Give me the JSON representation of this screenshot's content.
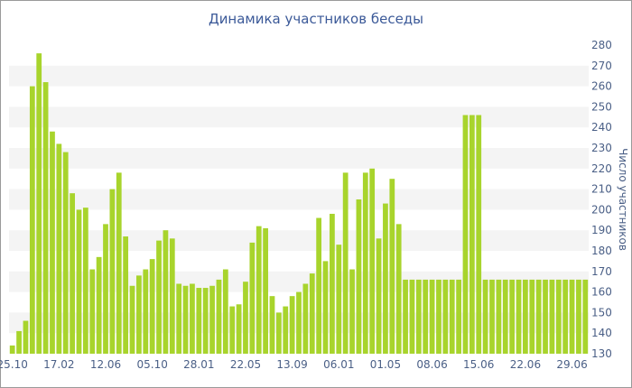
{
  "chart_data": {
    "type": "bar",
    "title": "Динамика участников беседы",
    "ylabel": "Число участников",
    "ylim": [
      130,
      280
    ],
    "ytick_step": 10,
    "grid": "horizontal bands",
    "bar_color": "#a8d42c",
    "band_color": "#f4f4f4",
    "axis_text_color": "#4a5f86",
    "x_tick_labels": [
      {
        "index": 0,
        "label": "25.10"
      },
      {
        "index": 7,
        "label": "17.02"
      },
      {
        "index": 14,
        "label": "12.06"
      },
      {
        "index": 21,
        "label": "05.10"
      },
      {
        "index": 28,
        "label": "28.01"
      },
      {
        "index": 35,
        "label": "22.05"
      },
      {
        "index": 42,
        "label": "13.09"
      },
      {
        "index": 49,
        "label": "06.01"
      },
      {
        "index": 56,
        "label": "01.05"
      },
      {
        "index": 63,
        "label": "08.06"
      },
      {
        "index": 70,
        "label": "15.06"
      },
      {
        "index": 77,
        "label": "22.06"
      },
      {
        "index": 84,
        "label": "29.06"
      }
    ],
    "values": [
      134,
      141,
      146,
      260,
      276,
      262,
      238,
      232,
      228,
      208,
      200,
      201,
      171,
      177,
      193,
      210,
      218,
      187,
      163,
      168,
      171,
      176,
      185,
      190,
      186,
      164,
      163,
      164,
      162,
      162,
      163,
      166,
      171,
      153,
      154,
      165,
      184,
      192,
      191,
      158,
      150,
      153,
      158,
      160,
      164,
      169,
      196,
      175,
      198,
      183,
      218,
      171,
      205,
      218,
      220,
      186,
      203,
      215,
      193,
      166,
      166,
      166,
      166,
      166,
      166,
      166,
      166,
      166,
      246,
      246,
      246,
      166,
      166,
      166,
      166,
      166,
      166,
      166,
      166,
      166,
      166,
      166,
      166,
      166,
      166,
      166,
      166
    ]
  }
}
